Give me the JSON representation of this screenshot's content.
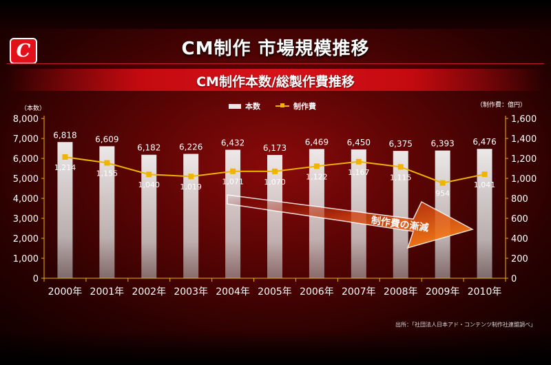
{
  "header": {
    "logo_letter": "C",
    "title": "CM制作 市場規模推移",
    "subtitle": "CM制作本数/総製作費推移"
  },
  "units": {
    "left": "（本数）",
    "right": "（制作費：億円）"
  },
  "source": "出所：「社団法人日本アド・コンテンツ制作社連盟調べ」",
  "annotation": "制作費の漸減",
  "colors": {
    "bar": "#e8e8e8",
    "line": "#f0b400",
    "background": "#5a0404",
    "accent": "#e2101a"
  },
  "chart_data": {
    "type": "bar",
    "categories": [
      "2000年",
      "2001年",
      "2002年",
      "2003年",
      "2004年",
      "2005年",
      "2006年",
      "2007年",
      "2008年",
      "2009年",
      "2010年"
    ],
    "series": [
      {
        "name": "本数",
        "type": "bar",
        "axis": "left",
        "values": [
          6818,
          6609,
          6182,
          6226,
          6432,
          6173,
          6469,
          6450,
          6375,
          6393,
          6476
        ],
        "labels": [
          "6,818",
          "6,609",
          "6,182",
          "6,226",
          "6,432",
          "6,173",
          "6,469",
          "6,450",
          "6,375",
          "6,393",
          "6,476"
        ]
      },
      {
        "name": "制作費",
        "type": "line",
        "axis": "right",
        "values": [
          1214,
          1155,
          1040,
          1019,
          1071,
          1070,
          1122,
          1167,
          1115,
          954,
          1041
        ],
        "labels": [
          "1,214",
          "1,155",
          "1,040",
          "1,019",
          "1,071",
          "1,070",
          "1,122",
          "1,167",
          "1,115",
          "954",
          "1,041"
        ]
      }
    ],
    "y_left": {
      "ylim": [
        0,
        8000
      ],
      "ticks": [
        "0",
        "1,000",
        "2,000",
        "3,000",
        "4,000",
        "5,000",
        "6,000",
        "7,000",
        "8,000"
      ]
    },
    "y_right": {
      "ylim": [
        0,
        1600
      ],
      "ticks": [
        "0",
        "200",
        "400",
        "600",
        "800",
        "1,000",
        "1,200",
        "1,400",
        "1,600"
      ]
    },
    "grid": false,
    "legend": "top-center"
  }
}
